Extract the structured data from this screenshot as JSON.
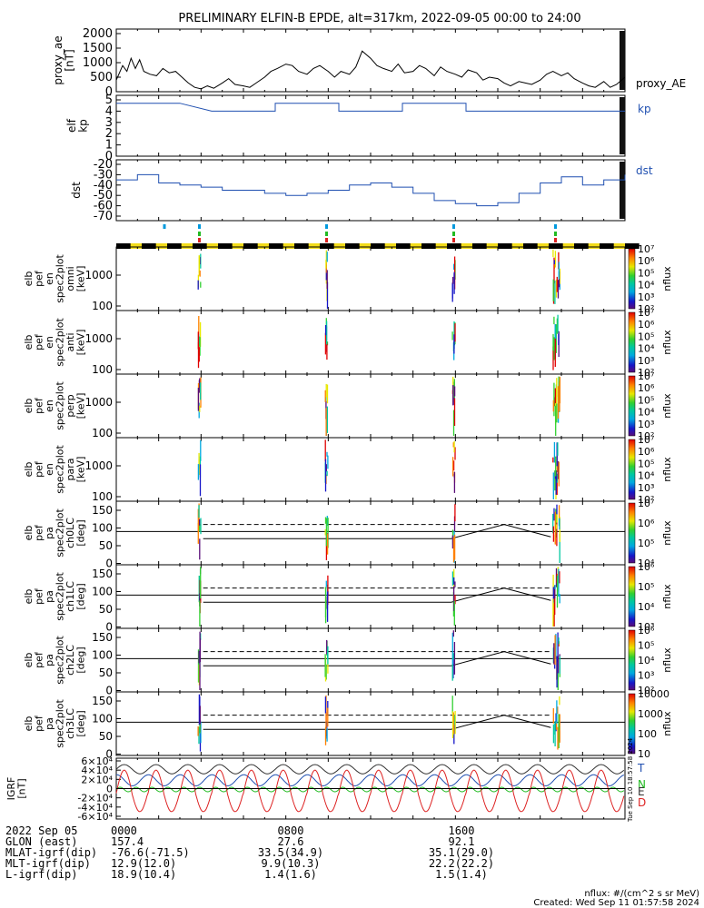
{
  "title": "PRELIMINARY ELFIN-B EPDE, alt=317km, 2022-09-05 00:00 to 24:00",
  "colors": {
    "index_line": "#1f4fb0",
    "axis": "#000000",
    "label_blue": "#1f4fb0",
    "T": "#1f4fb0",
    "N": "#22bb22",
    "E": "#333333",
    "D": "#dd2222"
  },
  "chart_data": [
    {
      "type": "line",
      "panel": "proxy_ae",
      "ylabel": "proxy_ae\n[nT]",
      "legend": "proxy_AE",
      "ylim": [
        0,
        2000
      ],
      "yticks": [
        "2000",
        "1500",
        "1000",
        "500",
        "0"
      ],
      "x_hours": [
        0,
        0.3,
        0.5,
        0.7,
        0.9,
        1.1,
        1.3,
        1.6,
        1.9,
        2.2,
        2.5,
        2.8,
        3.1,
        3.4,
        3.7,
        4.0,
        4.3,
        4.6,
        5.0,
        5.3,
        5.6,
        6.0,
        6.3,
        6.6,
        7.0,
        7.3,
        7.6,
        8.0,
        8.3,
        8.6,
        9.0,
        9.3,
        9.6,
        10.0,
        10.3,
        10.6,
        11.0,
        11.3,
        11.6,
        12.0,
        12.3,
        12.6,
        13.0,
        13.3,
        13.6,
        14.0,
        14.3,
        14.6,
        15.0,
        15.3,
        15.6,
        16.0,
        16.3,
        16.6,
        17.0,
        17.3,
        17.6,
        18.0,
        18.3,
        18.6,
        19.0,
        19.3,
        19.6,
        20.0,
        20.3,
        20.6,
        21.0,
        21.3,
        21.6,
        22.0,
        22.3,
        22.6,
        23.0,
        23.3,
        23.6,
        24.0
      ],
      "y_values": [
        400,
        900,
        700,
        1150,
        800,
        1100,
        700,
        600,
        550,
        800,
        650,
        700,
        500,
        300,
        150,
        100,
        200,
        120,
        300,
        450,
        250,
        200,
        150,
        300,
        500,
        700,
        800,
        950,
        900,
        700,
        600,
        800,
        900,
        700,
        500,
        700,
        600,
        850,
        1400,
        1150,
        900,
        800,
        700,
        950,
        650,
        700,
        900,
        800,
        550,
        850,
        700,
        600,
        500,
        750,
        650,
        400,
        500,
        450,
        300,
        200,
        350,
        300,
        250,
        400,
        600,
        700,
        550,
        650,
        450,
        300,
        200,
        150,
        350,
        150,
        250,
        500
      ]
    },
    {
      "type": "line",
      "panel": "kp",
      "ylabel": "elf\nkp",
      "legend": "kp",
      "ylim": [
        0,
        5
      ],
      "yticks": [
        "5",
        "4",
        "3",
        "2",
        "1",
        "0"
      ],
      "step_hours": [
        0,
        3,
        3,
        4.5,
        4.5,
        7.5,
        7.5,
        10.5,
        10.5,
        13.5,
        13.5,
        16.5,
        16.5,
        24
      ],
      "step_values": [
        4.7,
        4.7,
        4.7,
        4.0,
        4.0,
        4.0,
        4.7,
        4.7,
        4.0,
        4.0,
        4.7,
        4.7,
        4.0,
        4.0
      ]
    },
    {
      "type": "line",
      "panel": "dst",
      "ylabel": "dst",
      "legend": "dst",
      "ylim": [
        -75,
        -15
      ],
      "yticks": [
        "-20",
        "-30",
        "-40",
        "-50",
        "-60",
        "-70"
      ],
      "hours": [
        0,
        1,
        2,
        3,
        4,
        5,
        6,
        7,
        8,
        9,
        10,
        11,
        12,
        13,
        14,
        15,
        16,
        17,
        18,
        19,
        20,
        21,
        22,
        23,
        24
      ],
      "values": [
        -35,
        -30,
        -38,
        -40,
        -42,
        -45,
        -45,
        -48,
        -50,
        -48,
        -45,
        -40,
        -38,
        -42,
        -48,
        -55,
        -58,
        -60,
        -57,
        -48,
        -38,
        -32,
        -40,
        -35,
        -30
      ]
    },
    {
      "type": "heatmap",
      "panel_type": "energy-spectrogram",
      "panels": [
        {
          "ylabel": "elb\npef\nen\nspec2plot\nomni\n[keV]"
        },
        {
          "ylabel": "elb\npef\nen\nspec2plot\nanti\n[keV]"
        },
        {
          "ylabel": "elb\npef\nen\nspec2plot\nperp\n[keV]"
        },
        {
          "ylabel": "elb\npef\nen\nspec2plot\npara\n[keV]"
        }
      ],
      "yticks": [
        "1000",
        "100"
      ],
      "colorbar_label": "nflux",
      "colorbar_ticks": [
        "10⁷",
        "10⁶",
        "10⁵",
        "10⁴",
        "10³",
        "10²"
      ],
      "science_zone_hours": [
        3.9,
        9.9,
        15.9,
        20.7
      ]
    },
    {
      "type": "heatmap",
      "panel_type": "pitch-angle-spectrogram",
      "panels": [
        {
          "ylabel": "elb\npef\npa\nspec2plot\nch0LC\n[deg]",
          "colorbar_ticks": [
            "10⁷",
            "10⁶",
            "10⁵",
            "10⁴"
          ]
        },
        {
          "ylabel": "elb\npef\npa\nspec2plot\nch1LC\n[deg]",
          "colorbar_ticks": [
            "10⁶",
            "10⁵",
            "10⁴",
            "10³"
          ]
        },
        {
          "ylabel": "elb\npef\npa\nspec2plot\nch2LC\n[deg]",
          "colorbar_ticks": [
            "10⁶",
            "10⁵",
            "10⁴",
            "10³",
            "10²"
          ]
        },
        {
          "ylabel": "elb\npef\npa\nspec2plot\nch3LC\n[deg]",
          "colorbar_ticks": [
            "10000",
            "1000",
            "100",
            "10"
          ]
        }
      ],
      "yticks": [
        "150",
        "100",
        "50",
        "0"
      ],
      "colorbar_label": "nflux",
      "lc_dashed_deg": 110,
      "lc_solid_deg": 90,
      "lc_lower_deg": 70,
      "science_zone_hours": [
        3.9,
        9.9,
        15.9,
        20.7
      ]
    },
    {
      "type": "line",
      "panel": "igrf",
      "ylabel": "IGRF\n[nT]",
      "yticks": [
        "6×10⁴",
        "4×10⁴",
        "2×10⁴",
        "0",
        "-2×10⁴",
        "-4×10⁴",
        "-6×10⁴"
      ],
      "ylim": [
        -60000,
        60000
      ],
      "series": [
        {
          "name": "T",
          "role": "blue"
        },
        {
          "name": "N",
          "role": "green"
        },
        {
          "name": "E",
          "role": "black"
        },
        {
          "name": "D",
          "role": "red"
        }
      ],
      "orbit_period_hours": 1.5
    }
  ],
  "footer": {
    "rows": [
      {
        "label": "2022 Sep 05",
        "v1": "0000",
        "v2": "0800",
        "v3": "1600"
      },
      {
        "label": "GLON (east)",
        "v1": "157.4",
        "v2": "27.6",
        "v3": "92.1"
      },
      {
        "label": "MLAT-igrf(dip)",
        "v1": "-76.6(-71.5)",
        "v2": "33.5(34.9)",
        "v3": "35.1(29.0)"
      },
      {
        "label": "MLT-igrf(dip)",
        "v1": "12.9(12.0)",
        "v2": "9.9(10.3)",
        "v3": "22.2(22.2)"
      },
      {
        "label": "L-igrf(dip)",
        "v1": "18.9(10.4)",
        "v2": "1.4(1.6)",
        "v3": "1.5(1.4)"
      }
    ],
    "units_note": "nflux: #/(cm^2 s sr MeV)",
    "created": "Created: Wed Sep 11 01:57:58 2024",
    "side_stamp": "Tue Sep 10 18:57:58 2024"
  }
}
